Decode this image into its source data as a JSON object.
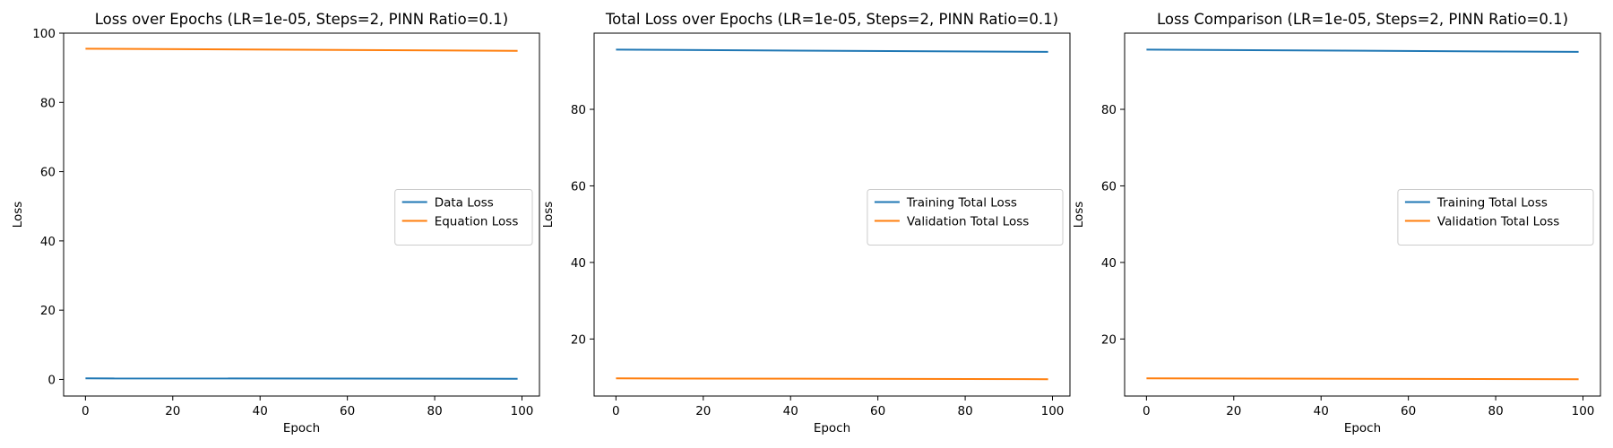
{
  "chart_data": [
    {
      "type": "line",
      "title": "Loss over Epochs (LR=1e-05, Steps=2, PINN Ratio=0.1)",
      "xlabel": "Epoch",
      "ylabel": "Loss",
      "xlim": [
        -5,
        104
      ],
      "ylim": [
        -4.8,
        100
      ],
      "xticks": [
        0,
        20,
        40,
        60,
        80,
        100
      ],
      "yticks": [
        0,
        20,
        40,
        60,
        80,
        100
      ],
      "legend_position": "center-right",
      "grid": false,
      "series": [
        {
          "name": "Data Loss",
          "color": "#1f77b4",
          "x": [
            0,
            99
          ],
          "y": [
            0.3,
            0.2
          ]
        },
        {
          "name": "Equation Loss",
          "color": "#ff7f0e",
          "x": [
            0,
            99
          ],
          "y": [
            95.5,
            94.9
          ]
        }
      ]
    },
    {
      "type": "line",
      "title": "Total Loss over Epochs (LR=1e-05, Steps=2, PINN Ratio=0.1)",
      "xlabel": "Epoch",
      "ylabel": "Loss",
      "xlim": [
        -5,
        104
      ],
      "ylim": [
        5.1,
        99.9
      ],
      "xticks": [
        0,
        20,
        40,
        60,
        80,
        100
      ],
      "yticks": [
        20,
        40,
        60,
        80
      ],
      "legend_position": "center-right",
      "grid": false,
      "series": [
        {
          "name": "Training Total Loss",
          "color": "#1f77b4",
          "x": [
            0,
            99
          ],
          "y": [
            95.6,
            95.0
          ]
        },
        {
          "name": "Validation Total Loss",
          "color": "#ff7f0e",
          "x": [
            0,
            99
          ],
          "y": [
            9.7,
            9.5
          ]
        }
      ]
    },
    {
      "type": "line",
      "title": "Loss Comparison (LR=1e-05, Steps=2, PINN Ratio=0.1)",
      "xlabel": "Epoch",
      "ylabel": "Loss",
      "xlim": [
        -5,
        104
      ],
      "ylim": [
        5.1,
        99.9
      ],
      "xticks": [
        0,
        20,
        40,
        60,
        80,
        100
      ],
      "yticks": [
        20,
        40,
        60,
        80
      ],
      "legend_position": "center-right",
      "grid": false,
      "series": [
        {
          "name": "Training Total Loss",
          "color": "#1f77b4",
          "x": [
            0,
            99
          ],
          "y": [
            95.6,
            95.0
          ]
        },
        {
          "name": "Validation Total Loss",
          "color": "#ff7f0e",
          "x": [
            0,
            99
          ],
          "y": [
            9.7,
            9.5
          ]
        }
      ]
    }
  ]
}
